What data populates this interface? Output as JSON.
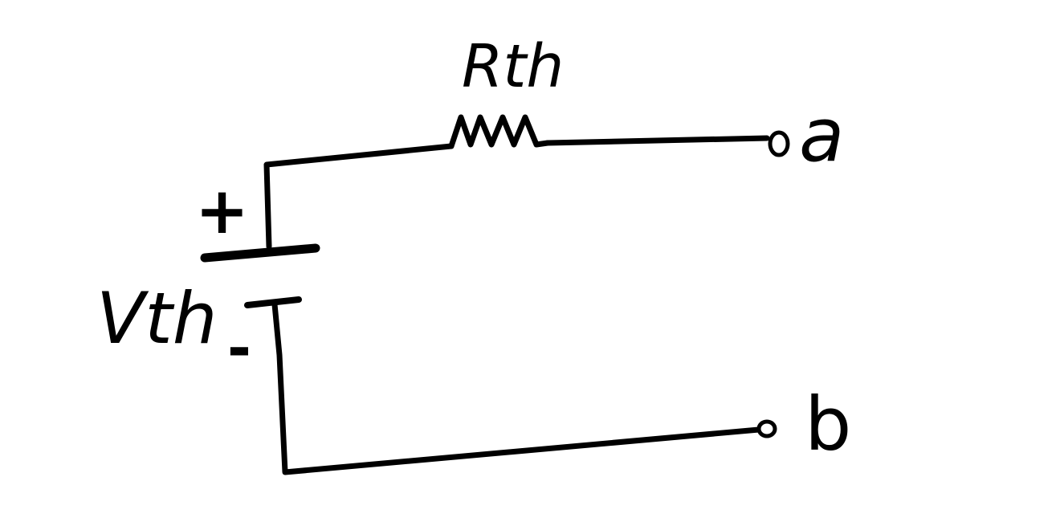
{
  "circuit": {
    "resistor_label": "Rth",
    "source_label": "Vth",
    "positive_sign": "+",
    "negative_sign": "-",
    "terminal_a": "a",
    "terminal_b": "b"
  }
}
